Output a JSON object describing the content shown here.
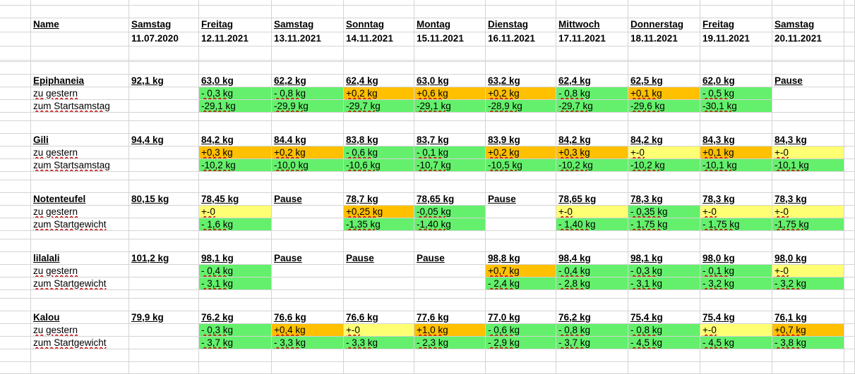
{
  "colors": {
    "green": "#64F06C",
    "orange": "#FFC000",
    "yellow": "#FFFF73",
    "grid": "#D4D4D4"
  },
  "header": {
    "name_label": "Name",
    "days": [
      {
        "day": "Samstag",
        "date": "11.07.2020"
      },
      {
        "day": "Freitag",
        "date": "12.11.2021"
      },
      {
        "day": "Samstag",
        "date": "13.11.2021"
      },
      {
        "day": "Sonntag",
        "date": "14.11.2021"
      },
      {
        "day": "Montag",
        "date": "15.11.2021"
      },
      {
        "day": "Dienstag",
        "date": "16.11.2021"
      },
      {
        "day": "Mittwoch",
        "date": "17.11.2021"
      },
      {
        "day": "Donnerstag",
        "date": "18.11.2021"
      },
      {
        "day": "Freitag",
        "date": "19.11.2021"
      },
      {
        "day": "Samstag",
        "date": "20.11.2021"
      }
    ]
  },
  "groups": [
    {
      "name": "Epiphaneia",
      "weights": [
        "92,1 kg",
        "63,0 kg",
        "62,2 kg",
        "62,4 kg",
        "63,0 kg",
        "63,2 kg",
        "62,4 kg",
        "62,5 kg",
        "62,0 kg",
        "Pause"
      ],
      "row2_label": "zu gestern",
      "row2": [
        [
          "",
          ""
        ],
        [
          "- 0,3 kg",
          "green"
        ],
        [
          "- 0,8 kg",
          "green"
        ],
        [
          "+0,2 kg",
          "orange"
        ],
        [
          "+0,6 kg",
          "orange"
        ],
        [
          "+0,2 kg",
          "orange"
        ],
        [
          "- 0,8 kg",
          "green"
        ],
        [
          "+0,1 kg",
          "orange"
        ],
        [
          "- 0,5 kg",
          "green"
        ],
        [
          "",
          ""
        ]
      ],
      "row3_label": "zum Startsamstag",
      "row3": [
        [
          "",
          ""
        ],
        [
          "-29,1 kg",
          "green"
        ],
        [
          "-29,9 kg",
          "green"
        ],
        [
          "-29,7 kg",
          "green"
        ],
        [
          "-29,1 kg",
          "green"
        ],
        [
          "-28,9 kg",
          "green"
        ],
        [
          "-29,7 kg",
          "green"
        ],
        [
          "-29,6 kg",
          "green"
        ],
        [
          "-30,1 kg",
          "green"
        ],
        [
          "",
          ""
        ]
      ]
    },
    {
      "name": "Gili",
      "weights": [
        "94,4 kg",
        "84,2 kg",
        "84.4 kg",
        "83,8 kg",
        "83,7 kg",
        "83,9 kg",
        "84,2 kg",
        "84,2 kg",
        "84,3 kg",
        "84,3 kg"
      ],
      "row2_label": "zu gestern",
      "row2": [
        [
          "",
          ""
        ],
        [
          "+0,3 kg",
          "orange"
        ],
        [
          "+0,2 kg",
          "orange"
        ],
        [
          "- 0,6 kg",
          "green"
        ],
        [
          "- 0,1 kg",
          "green"
        ],
        [
          "+0,2 kg",
          "orange"
        ],
        [
          "+0,3 kg",
          "orange"
        ],
        [
          "+-0",
          "yellow"
        ],
        [
          "+0,1 kg",
          "orange"
        ],
        [
          "+-0",
          "yellow"
        ]
      ],
      "row3_label": "zum Startsamstag",
      "row3": [
        [
          "",
          ""
        ],
        [
          "-10,2 kg",
          "green"
        ],
        [
          "-10,0 kg",
          "green"
        ],
        [
          "-10,6 kg",
          "green"
        ],
        [
          "-10,7 kg",
          "green"
        ],
        [
          "-10,5 kg",
          "green"
        ],
        [
          "-10,2 kg",
          "green"
        ],
        [
          "-10,2 kg",
          "green"
        ],
        [
          "-10,1 kg",
          "green"
        ],
        [
          "-10,1 kg",
          "green"
        ]
      ]
    },
    {
      "name": "Notenteufel",
      "weights": [
        "80,15 kg",
        "78,45 kg",
        "Pause",
        "78,7 kg",
        "78,65 kg",
        "Pause",
        "78,65 kg",
        "78,3 kg",
        "78,3 kg",
        "78,3 kg"
      ],
      "row2_label": "zu gestern",
      "row2": [
        [
          "",
          ""
        ],
        [
          "+-0",
          "yellow"
        ],
        [
          "",
          ""
        ],
        [
          "+0,25 kg",
          "orange"
        ],
        [
          "-0,05 kg",
          "green"
        ],
        [
          "",
          ""
        ],
        [
          "+-0",
          "yellow"
        ],
        [
          "- 0,35 kg",
          "green"
        ],
        [
          "+-0",
          "yellow"
        ],
        [
          "+-0",
          "yellow"
        ]
      ],
      "row3_label": "zum Startgewicht",
      "row3": [
        [
          "",
          ""
        ],
        [
          "- 1,6 kg",
          "green"
        ],
        [
          "",
          ""
        ],
        [
          "-1,35 kg",
          "green"
        ],
        [
          "-1,40 kg",
          "green"
        ],
        [
          "",
          ""
        ],
        [
          "- 1,40 kg",
          "green"
        ],
        [
          "- 1,75 kg",
          "green"
        ],
        [
          "- 1,75 kg",
          "green"
        ],
        [
          "-1,75 kg",
          "green"
        ]
      ]
    },
    {
      "name": "lilalali",
      "weights": [
        "101,2 kg",
        "98,1 kg",
        "Pause",
        "Pause",
        "Pause",
        "98,8 kg",
        "98,4 kg",
        "98,1 kg",
        "98,0 kg",
        "98,0 kg"
      ],
      "row2_label": "zu gestern",
      "row2": [
        [
          "",
          ""
        ],
        [
          "- 0,4 kg",
          "green"
        ],
        [
          "",
          ""
        ],
        [
          "",
          ""
        ],
        [
          "",
          ""
        ],
        [
          "+0,7 kg",
          "orange"
        ],
        [
          "- 0,4 kg",
          "green"
        ],
        [
          "- 0,3 kg",
          "green"
        ],
        [
          "- 0,1 kg",
          "green"
        ],
        [
          "+-0",
          "yellow"
        ]
      ],
      "row3_label": "zum Startgewicht",
      "row3": [
        [
          "",
          ""
        ],
        [
          "- 3,1 kg",
          "green"
        ],
        [
          "",
          ""
        ],
        [
          "",
          ""
        ],
        [
          "",
          ""
        ],
        [
          "- 2,4 kg",
          "green"
        ],
        [
          "- 2,8 kg",
          "green"
        ],
        [
          "- 3,1 kg",
          "green"
        ],
        [
          "- 3,2 kg",
          "green"
        ],
        [
          "- 3,2 kg",
          "green"
        ]
      ]
    },
    {
      "name": "Kalou",
      "weights": [
        "79,9 kg",
        "76,2 kg",
        "76,6 kg",
        "76,6 kg",
        "77,6 kg",
        "77,0 kg",
        "76,2 kg",
        "75,4 kg",
        "75,4 kg",
        "76,1 kg"
      ],
      "row2_label": "zu gestern",
      "row2": [
        [
          "",
          ""
        ],
        [
          "- 0,3 kg",
          "green"
        ],
        [
          "+0,4 kg",
          "orange"
        ],
        [
          "+-0",
          "yellow"
        ],
        [
          "+1,0 kg",
          "orange"
        ],
        [
          "- 0,6 kg",
          "green"
        ],
        [
          "- 0,8 kg",
          "green"
        ],
        [
          "- 0,8 kg",
          "green"
        ],
        [
          "+-0",
          "yellow"
        ],
        [
          "+0,7 kg",
          "orange"
        ]
      ],
      "row3_label": "zum Startgewicht",
      "row3": [
        [
          "",
          ""
        ],
        [
          "- 3,7 kg",
          "green"
        ],
        [
          "- 3,3 kg",
          "green"
        ],
        [
          "- 3,3 kg",
          "green"
        ],
        [
          "- 2,3 kg",
          "green"
        ],
        [
          "- 2,9 kg",
          "green"
        ],
        [
          "- 3,7 kg",
          "green"
        ],
        [
          "- 4,5 kg",
          "green"
        ],
        [
          "- 4,5 kg",
          "green"
        ],
        [
          "- 3,8 kg",
          "green"
        ]
      ]
    }
  ]
}
